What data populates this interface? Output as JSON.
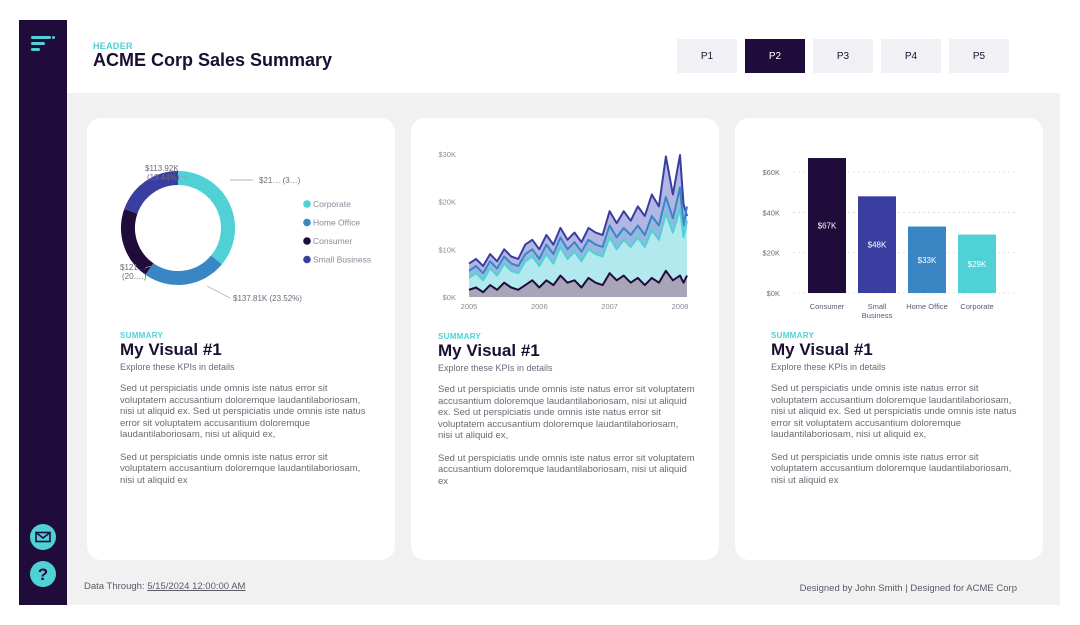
{
  "header": {
    "eyebrow": "HEADER",
    "title": "ACME Corp Sales Summary"
  },
  "pages": [
    "P1",
    "P2",
    "P3",
    "P4",
    "P5"
  ],
  "active_page": "P2",
  "sidebar": {
    "menu_icon": "menu-icon",
    "mail_icon": "mail-icon",
    "help_icon": "help-icon"
  },
  "colors": {
    "sidebar": "#1f0c3b",
    "accent": "#4fd1d6",
    "corporate": "#4fd1d6",
    "home_office": "#3a86c4",
    "consumer": "#1f0c3b",
    "small_business": "#3a3ea0"
  },
  "cards": [
    {
      "eyebrow": "SUMMARY",
      "title": "My Visual #1",
      "subtitle": "Explore these KPIs in details",
      "paragraphs": [
        "Sed ut perspiciatis unde omnis iste natus error sit voluptatem accusantium doloremque laudantilaboriosam, nisi ut aliquid ex. Sed ut perspiciatis unde omnis iste natus error sit voluptatem accusantium doloremque laudantilaboriosam, nisi ut aliquid ex,",
        "Sed ut perspiciatis unde omnis iste natus error sit voluptatem accusantium doloremque laudantilaboriosam, nisi ut aliquid ex"
      ]
    },
    {
      "eyebrow": "SUMMARY",
      "title": "My Visual #1",
      "subtitle": "Explore these KPIs in details",
      "paragraphs": [
        "Sed ut perspiciatis unde omnis iste natus error sit voluptatem accusantium doloremque laudantilaboriosam, nisi ut aliquid ex. Sed ut perspiciatis unde omnis iste natus error sit voluptatem accusantium doloremque laudantilaboriosam, nisi ut aliquid ex,",
        "Sed ut perspiciatis unde omnis iste natus error sit voluptatem accusantium doloremque laudantilaboriosam, nisi ut aliquid ex"
      ]
    },
    {
      "eyebrow": "SUMMARY",
      "title": "My Visual #1",
      "subtitle": "Explore these KPIs in details",
      "paragraphs": [
        "Sed ut perspiciatis unde omnis iste natus error sit voluptatem accusantium doloremque laudantilaboriosam, nisi ut aliquid ex. Sed ut perspiciatis unde omnis iste natus error sit voluptatem accusantium doloremque laudantilaboriosam, nisi ut aliquid ex,",
        "Sed ut perspiciatis unde omnis iste natus error sit voluptatem accusantium doloremque laudantilaboriosam, nisi ut aliquid ex"
      ]
    }
  ],
  "footer": {
    "data_through_label": "Data Through:",
    "data_through_value": "5/15/2024 12:00:00 AM",
    "credits": "Designed by John Smith  |  Designed for ACME Corp"
  },
  "chart_data": [
    {
      "type": "pie",
      "variant": "donut",
      "categories": [
        "Corporate",
        "Home Office",
        "Consumer",
        "Small Business"
      ],
      "values": [
        210,
        137.81,
        121,
        113.92
      ],
      "percent": [
        35.9,
        23.52,
        20.7,
        19.44
      ],
      "data_labels": [
        "$21… (3…)",
        "$137.81K (23.52%)",
        "$121… (20.…)",
        "$113.92K (19.44%)"
      ],
      "legend": [
        "Corporate",
        "Home Office",
        "Consumer",
        "Small Business"
      ],
      "legend_position": "right"
    },
    {
      "type": "area",
      "x_ticks": [
        "2005",
        "2006",
        "2007",
        "2008"
      ],
      "y_ticks": [
        "$0K",
        "$10K",
        "$20K",
        "$30K"
      ],
      "ylim": [
        0,
        30
      ],
      "x": [
        2005.0,
        2005.1,
        2005.2,
        2005.3,
        2005.4,
        2005.5,
        2005.6,
        2005.7,
        2005.8,
        2005.9,
        2006.0,
        2006.1,
        2006.2,
        2006.3,
        2006.4,
        2006.5,
        2006.6,
        2006.7,
        2006.8,
        2006.9,
        2007.0,
        2007.1,
        2007.2,
        2007.3,
        2007.4,
        2007.5,
        2007.6,
        2007.7,
        2007.8,
        2007.9,
        2008.0,
        2008.05,
        2008.1
      ],
      "series": [
        {
          "values": [
            1.5,
            2.0,
            1.0,
            2.5,
            1.5,
            3.0,
            2.0,
            1.5,
            2.5,
            3.5,
            2.0,
            3.5,
            2.5,
            4.5,
            3.0,
            3.5,
            2.0,
            4.0,
            3.0,
            2.5,
            5.0,
            3.5,
            4.5,
            3.0,
            4.0,
            2.5,
            4.0,
            3.0,
            5.5,
            3.5,
            4.5,
            3.0,
            4.5
          ]
        },
        {
          "values": [
            4.0,
            5.0,
            3.5,
            6.0,
            4.5,
            7.0,
            5.5,
            5.0,
            7.5,
            8.5,
            6.5,
            9.0,
            7.0,
            10.5,
            8.0,
            9.5,
            7.5,
            10.0,
            9.0,
            8.5,
            12.5,
            10.0,
            12.0,
            10.5,
            12.5,
            10.5,
            14.0,
            12.0,
            17.5,
            13.5,
            18.5,
            12.5,
            16.0
          ]
        },
        {
          "values": [
            5.5,
            6.5,
            5.0,
            7.5,
            6.0,
            8.5,
            7.0,
            6.5,
            9.0,
            10.0,
            8.0,
            11.0,
            9.0,
            12.5,
            10.0,
            11.5,
            9.5,
            12.0,
            11.0,
            10.5,
            15.0,
            12.5,
            14.5,
            13.0,
            15.0,
            13.0,
            17.0,
            15.0,
            21.0,
            16.5,
            23.0,
            15.0,
            19.0
          ]
        },
        {
          "values": [
            7.0,
            8.0,
            6.5,
            9.0,
            7.5,
            10.0,
            8.5,
            8.0,
            11.0,
            12.0,
            10.0,
            13.0,
            11.0,
            14.5,
            12.0,
            13.5,
            11.5,
            14.5,
            13.5,
            13.0,
            18.0,
            15.5,
            18.0,
            16.0,
            19.0,
            17.0,
            21.5,
            19.0,
            29.5,
            21.5,
            29.8,
            19.5,
            17.0
          ]
        }
      ]
    },
    {
      "type": "bar",
      "categories": [
        "Consumer",
        "Small Business",
        "Home Office",
        "Corporate"
      ],
      "values": [
        67,
        48,
        33,
        29
      ],
      "data_labels": [
        "$67K",
        "$48K",
        "$33K",
        "$29K"
      ],
      "y_ticks": [
        "$0K",
        "$20K",
        "$40K",
        "$60K"
      ],
      "ylim": [
        0,
        70
      ],
      "grid": true
    }
  ]
}
